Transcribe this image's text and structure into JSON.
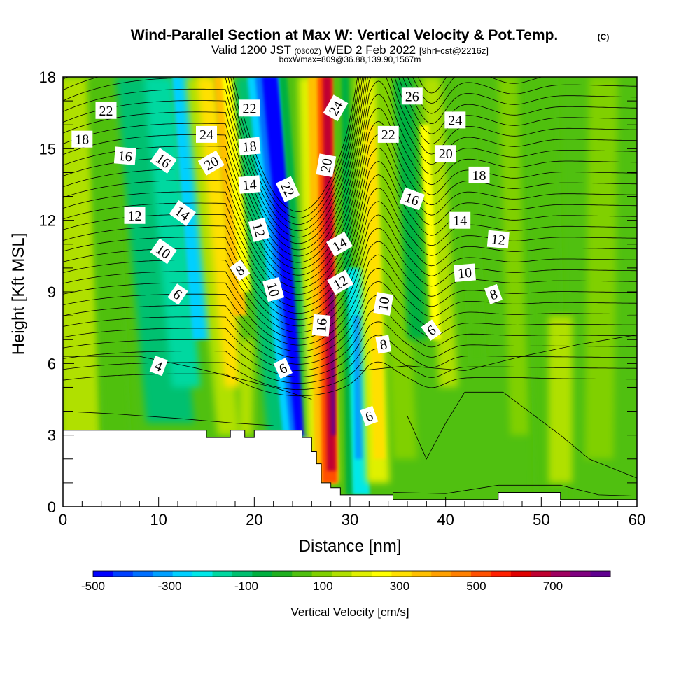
{
  "chart_data": {
    "type": "heatmap",
    "title": "Wind-Parallel Section at Max W: Vertical Velocity & Pot.Temp.",
    "title_mark": "(C)",
    "subtitle": {
      "prefix": "Valid 1200 JST",
      "utc": "(0300Z)",
      "date": "WED 2 Feb 2022",
      "forecast": "[9hrFcst@2216z]"
    },
    "box_info": "boxWmax=809@36.88,139.90,1567m",
    "xlabel": "Distance [nm]",
    "ylabel": "Height [Kft MSL]",
    "xlim": [
      0,
      60
    ],
    "ylim": [
      0,
      18
    ],
    "x_ticks": [
      "0",
      "10",
      "20",
      "30",
      "40",
      "50",
      "60"
    ],
    "y_ticks": [
      "0",
      "3",
      "6",
      "9",
      "12",
      "15",
      "18"
    ],
    "colorbar": {
      "label": "Vertical Velocity [cm/s]",
      "tick_labels": [
        "-500",
        "-300",
        "-100",
        "100",
        "300",
        "500",
        "700"
      ],
      "tick_values": [
        -500,
        -300,
        -100,
        100,
        300,
        500,
        700
      ],
      "range": [
        -500,
        850
      ],
      "colors": [
        "#0000ff",
        "#0040ff",
        "#0070ff",
        "#00a0ff",
        "#00d0ff",
        "#00e8e8",
        "#00d8a0",
        "#00c070",
        "#00b040",
        "#20b020",
        "#50c010",
        "#80d000",
        "#b0e000",
        "#e0f000",
        "#ffff00",
        "#ffe000",
        "#ffc000",
        "#ffa000",
        "#ff8000",
        "#ff5000",
        "#ff2000",
        "#e00000",
        "#c00030",
        "#a00060",
        "#800080",
        "#600090"
      ]
    },
    "theta_contour_labels": [
      "4",
      "6",
      "6",
      "6",
      "6",
      "8",
      "8",
      "8",
      "10",
      "10",
      "10",
      "10",
      "12",
      "12",
      "12",
      "12",
      "14",
      "14",
      "14",
      "14",
      "16",
      "16",
      "16",
      "16",
      "18",
      "18",
      "18",
      "20",
      "20",
      "20",
      "22",
      "22",
      "22",
      "22",
      "24",
      "24",
      "24",
      "26"
    ],
    "terrain_profile": {
      "x": [
        0,
        15,
        15,
        17.5,
        17.5,
        19,
        19,
        20,
        20,
        25,
        25,
        26,
        26,
        26.5,
        26.5,
        27,
        27,
        28,
        28,
        29,
        29,
        34.5,
        34.5,
        45.5,
        45.5,
        52,
        52,
        60
      ],
      "y": [
        3.2,
        3.2,
        2.9,
        2.9,
        3.2,
        3.2,
        2.9,
        2.9,
        3.2,
        3.2,
        2.9,
        2.9,
        2.3,
        2.3,
        1.8,
        1.8,
        1.0,
        1.0,
        0.8,
        0.8,
        0.5,
        0.5,
        0.3,
        0.3,
        0.6,
        0.6,
        0.3,
        0.3
      ]
    },
    "updraft_features": [
      {
        "name": "strong updraft core",
        "x_bottom": 28.0,
        "x_top": 27.5,
        "peak_w": 809
      },
      {
        "name": "strong downdraft core",
        "x_bottom": 25.5,
        "x_top": 21.0,
        "peak_w": -500
      }
    ]
  }
}
